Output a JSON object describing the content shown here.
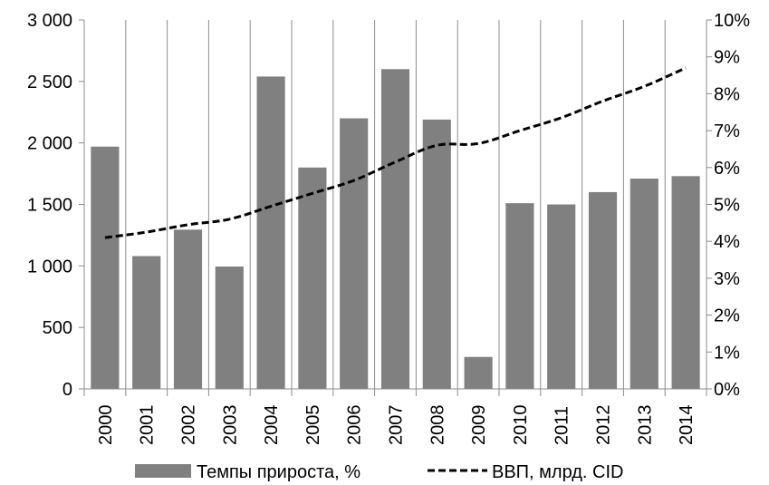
{
  "chart_data": {
    "type": "bar",
    "categories": [
      "2000",
      "2001",
      "2002",
      "2003",
      "2004",
      "2005",
      "2006",
      "2007",
      "2008",
      "2009",
      "2010",
      "2011",
      "2012",
      "2013",
      "2014"
    ],
    "series": [
      {
        "name": "Темпы прироста, %",
        "kind": "bar",
        "axis": "left",
        "color": "#808080",
        "values": [
          1970,
          1080,
          1295,
          995,
          2540,
          1800,
          2200,
          2600,
          2190,
          260,
          1510,
          1500,
          1600,
          1710,
          1730
        ]
      },
      {
        "name": "ВВП, млрд. CID",
        "kind": "line",
        "style": "dashed",
        "axis": "right",
        "color": "#000000",
        "values": [
          4.1,
          4.25,
          4.45,
          4.6,
          4.95,
          5.3,
          5.65,
          6.15,
          6.6,
          6.65,
          7.0,
          7.35,
          7.8,
          8.2,
          8.7
        ]
      }
    ],
    "y_left": {
      "ticks": [
        "0",
        "500",
        "1 000",
        "1 500",
        "2 000",
        "2 500",
        "3 000"
      ],
      "ylim": [
        0,
        3000
      ]
    },
    "y_right": {
      "ticks": [
        "0%",
        "1%",
        "2%",
        "3%",
        "4%",
        "5%",
        "6%",
        "7%",
        "8%",
        "9%",
        "10%"
      ],
      "ylim": [
        0,
        10
      ]
    },
    "grid": true,
    "legend_position": "bottom"
  }
}
